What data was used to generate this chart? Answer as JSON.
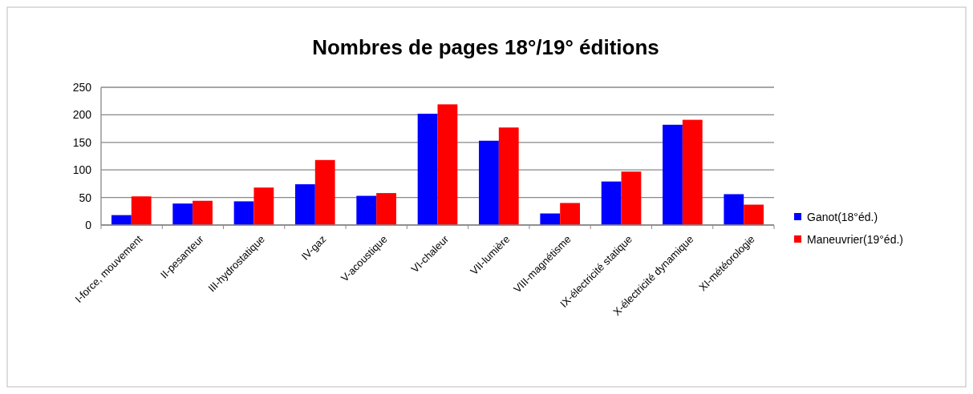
{
  "chart_data": {
    "type": "bar",
    "title": "Nombres de pages 18°/19° éditions",
    "categories": [
      "I-force, mouvement",
      "II-pesanteur",
      "III-hydrostatique",
      "IV-gaz",
      "V-acoustique",
      "VI-chaleur",
      "VII-lumière",
      "VIII-magnétisme",
      "IX-électricité statique",
      "X-électricité dynamique",
      "XI-météorologie"
    ],
    "series": [
      {
        "name": "Ganot(18°éd.)",
        "color": "#0000ff",
        "values": [
          18,
          39,
          43,
          74,
          53,
          202,
          153,
          21,
          79,
          182,
          56
        ]
      },
      {
        "name": "Maneuvrier(19°éd.)",
        "color": "#ff0000",
        "values": [
          52,
          44,
          68,
          118,
          58,
          219,
          177,
          40,
          97,
          191,
          37
        ]
      }
    ],
    "ylim": [
      0,
      250
    ],
    "yticks": [
      0,
      50,
      100,
      150,
      200,
      250
    ],
    "grid": "y",
    "legend": "right"
  }
}
